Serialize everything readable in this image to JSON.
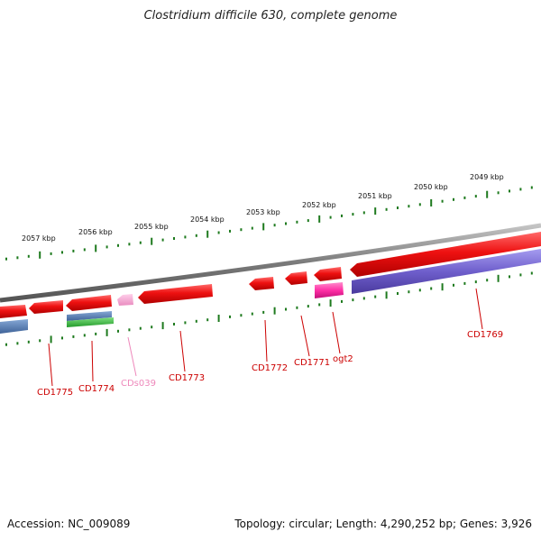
{
  "title": "Clostridium difficile 630, complete genome",
  "footer": {
    "accession": "Accession: NC_009089",
    "topology": "Topology: circular; Length: 4,290,252 bp; Genes: 3,926"
  },
  "colors": {
    "backbone": "#8a8a8a",
    "cds": "#ee1111",
    "cds_selected": "#ff3fae",
    "ncrna": "#f5a6d2",
    "feature_blue": "#4f78b0",
    "feature_green": "#33bb33",
    "feature_purple": "#6f5fcc",
    "tick": "#1e7a1e",
    "label_red": "#cc0000",
    "label_pink": "#ee88bb"
  },
  "kbp_labels": [
    "2057 kbp",
    "2056 kbp",
    "2055 kbp",
    "2054 kbp",
    "2053 kbp",
    "2052 kbp",
    "2051 kbp",
    "2050 kbp",
    "2049 kbp"
  ],
  "gene_labels": [
    {
      "text": "CD1775",
      "kind": "red"
    },
    {
      "text": "CD1774",
      "kind": "red"
    },
    {
      "text": "CDs039",
      "kind": "pink"
    },
    {
      "text": "CD1773",
      "kind": "red"
    },
    {
      "text": "CD1772",
      "kind": "red"
    },
    {
      "text": "CD1771",
      "kind": "red"
    },
    {
      "text": "ogt2",
      "kind": "red"
    },
    {
      "text": "CD1769",
      "kind": "red"
    }
  ]
}
